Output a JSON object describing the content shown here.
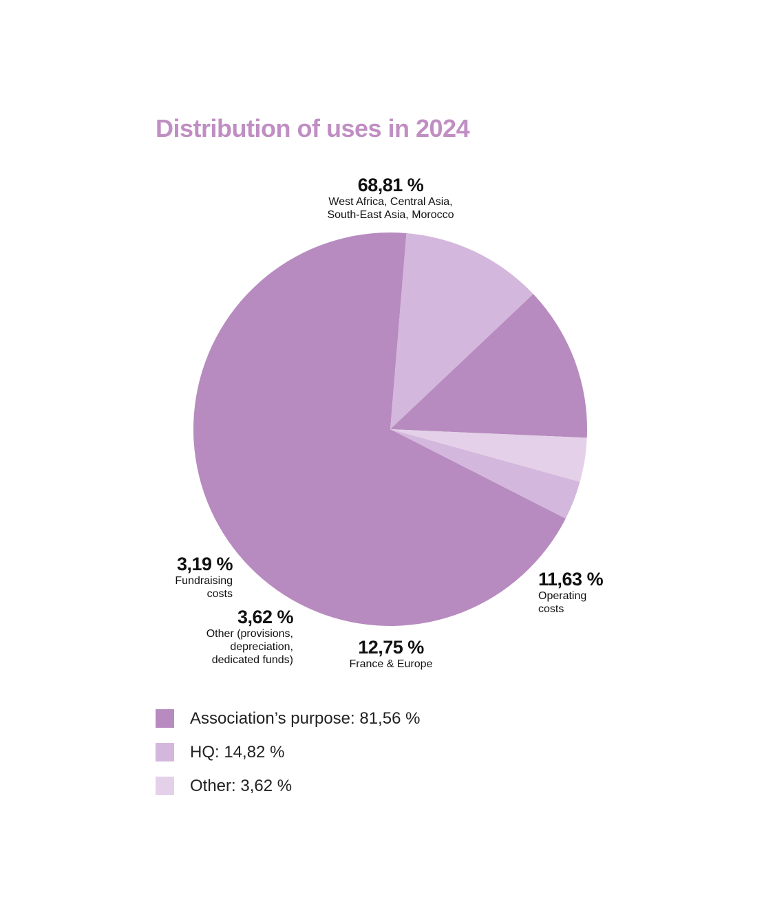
{
  "title": "Distribution of uses in 2024",
  "colors": {
    "title": "#c08ec3",
    "purpose": "#b78bbf",
    "hq": "#d4b7dc",
    "other": "#e4d1e9"
  },
  "chart_data": {
    "type": "pie",
    "title": "Distribution of uses in 2024",
    "slices": [
      {
        "id": "wa",
        "value": 68.81,
        "value_label": "68,81 %",
        "label": "West Africa, Central Asia,\nSouth-East Asia, Morocco",
        "group": "purpose"
      },
      {
        "id": "op",
        "value": 11.63,
        "value_label": "11,63 %",
        "label": "Operating\ncosts",
        "group": "hq"
      },
      {
        "id": "fr",
        "value": 12.75,
        "value_label": "12,75 %",
        "label": "France & Europe",
        "group": "purpose"
      },
      {
        "id": "ot",
        "value": 3.62,
        "value_label": "3,62 %",
        "label": "Other (provisions,\ndepreciation,\ndedicated funds)",
        "group": "other"
      },
      {
        "id": "fu",
        "value": 3.19,
        "value_label": "3,19 %",
        "label": "Fundraising\ncosts",
        "group": "hq"
      }
    ],
    "legend": [
      {
        "label": "Association’s purpose: 81,56 %",
        "group": "purpose"
      },
      {
        "label": "HQ: 14,82 %",
        "group": "hq"
      },
      {
        "label": "Other: 3,62 %",
        "group": "other"
      }
    ],
    "legend_position": "bottom-left"
  }
}
